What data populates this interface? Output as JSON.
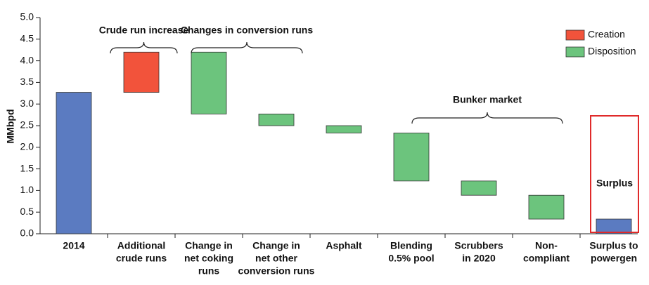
{
  "chart_data": {
    "type": "waterfall",
    "y_label": "MMbpd",
    "categories": [
      [
        "2014"
      ],
      [
        "Additional",
        "crude runs"
      ],
      [
        "Change in",
        "net coking",
        "runs"
      ],
      [
        "Change in",
        "net other",
        "conversion runs"
      ],
      [
        "Asphalt"
      ],
      [
        "Blending",
        "0.5% pool"
      ],
      [
        "Scrubbers",
        "in 2020"
      ],
      [
        "Non-",
        "compliant"
      ],
      [
        "Surplus to",
        "powergen"
      ]
    ],
    "values": [
      3.27,
      0.93,
      -1.43,
      -0.27,
      -0.17,
      -1.11,
      -0.33,
      -0.55,
      0.34
    ],
    "measures": [
      "absolute",
      "relative",
      "relative",
      "relative",
      "relative",
      "relative",
      "relative",
      "relative",
      "total"
    ],
    "total_color": "#5b7bc1",
    "legend": {
      "position": "upper right",
      "entries": [
        {
          "name": "Creation",
          "color": "#f2533b"
        },
        {
          "name": "Disposition",
          "color": "#6cc47d"
        }
      ]
    },
    "annotations": [
      "Crude run increase",
      "Changes in conversion runs",
      "Bunker market",
      "Surplus"
    ],
    "ylim": [
      0,
      5
    ],
    "yticks": [
      {
        "value": 0,
        "label": "0.0"
      },
      0.5,
      {
        "value": 1,
        "label": "1.0"
      },
      1.5,
      {
        "value": 2,
        "label": "2.0"
      },
      2.5,
      {
        "value": 3,
        "label": "3.0"
      },
      3.5,
      {
        "value": 4,
        "label": "4.0"
      },
      4.5,
      {
        "value": 5,
        "label": "5.0"
      }
    ]
  }
}
